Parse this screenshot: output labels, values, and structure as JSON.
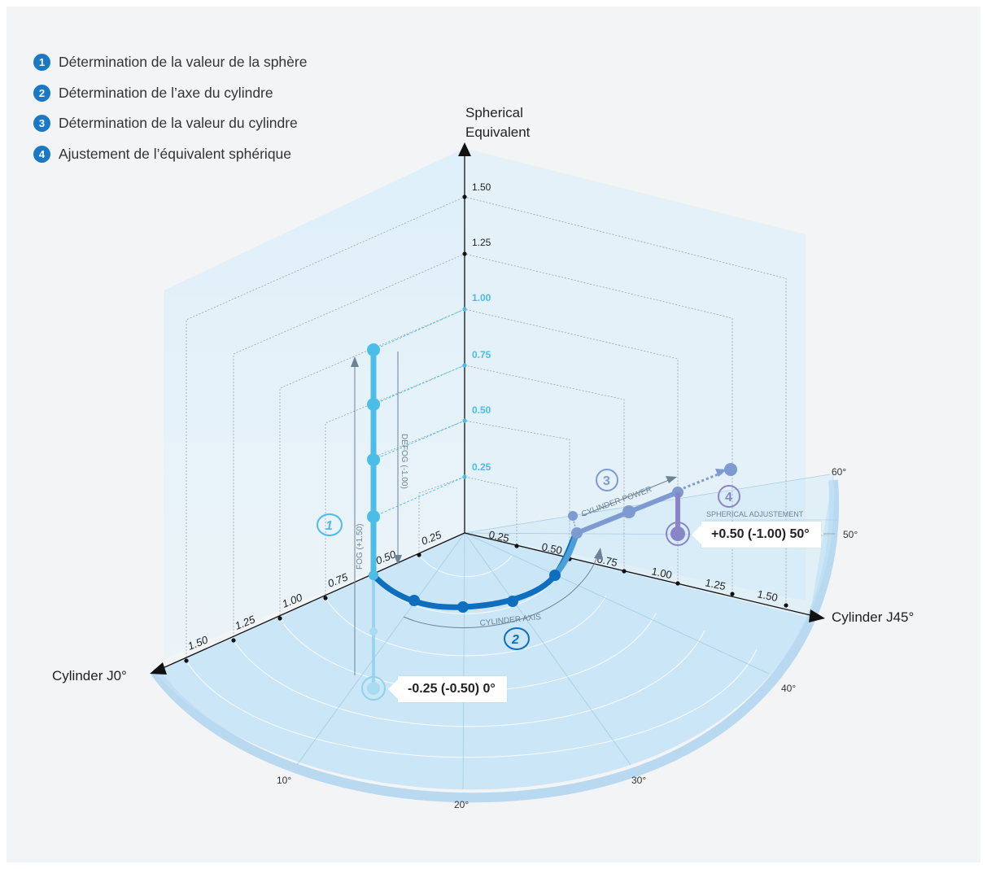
{
  "legend": [
    {
      "num": "1",
      "text": "Détermination de la valeur de la sphère"
    },
    {
      "num": "2",
      "text": "Détermination de l’axe du cylindre"
    },
    {
      "num": "3",
      "text": "Détermination de la valeur du cylindre"
    },
    {
      "num": "4",
      "text": "Ajustement de l’équivalent sphérique"
    }
  ],
  "axes": {
    "vertical_line1": "Spherical",
    "vertical_line2": "Equivalent",
    "left": "Cylinder J0°",
    "right": "Cylinder J45°"
  },
  "vertical_ticks": [
    "1.50",
    "1.25",
    "1.00",
    "0.75",
    "0.50",
    "0.25"
  ],
  "left_ticks": [
    "0.25",
    "0.50",
    "0.75",
    "1.00",
    "1.25",
    "1.50"
  ],
  "right_ticks": [
    "0.25",
    "0.50",
    "0.75",
    "1.00",
    "1.25",
    "1.50"
  ],
  "angle_labels": [
    "10°",
    "20°",
    "30°",
    "40°",
    "50°",
    "60°"
  ],
  "step_labels": {
    "fog": "FOG (+1.50)",
    "defog": "DEFOG (-1.00)",
    "cylinder_axis": "CYLINDER AXIS",
    "cylinder_power": "CYLINDER POWER",
    "spherical_adjustement": "SPHERICAL ADJUSTEMENT",
    "step1": "1",
    "step2": "2",
    "step3": "3",
    "step4": "4"
  },
  "callouts": {
    "start": "-0.25 (-0.50) 0°",
    "end": "+0.50 (-1.00) 50°"
  },
  "colors": {
    "step1": "#4cbde8",
    "step2": "#0f6fbf",
    "step3": "#7d9bd0",
    "step4": "#8a85c6",
    "axis": "#111111",
    "plane": "#d9ecf8"
  }
}
